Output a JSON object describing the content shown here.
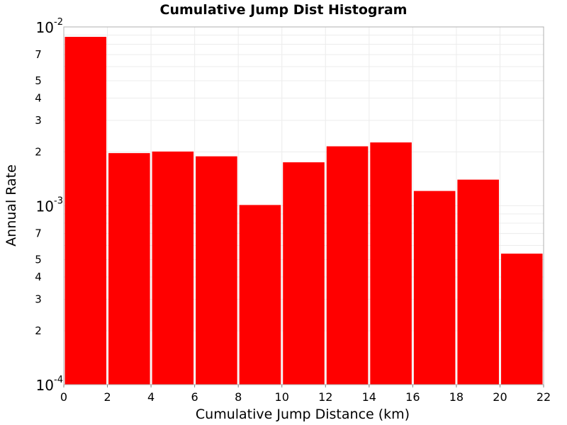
{
  "chart_data": {
    "type": "bar",
    "title": "Cumulative Jump Dist Histogram",
    "xlabel": "Cumulative Jump Distance (km)",
    "ylabel": "Annual Rate",
    "yscale": "log",
    "xlim": [
      0,
      22
    ],
    "ylim": [
      0.0001,
      0.01
    ],
    "grid": true,
    "bar_color": "#ff0000",
    "x_ticks": [
      "0",
      "2",
      "4",
      "6",
      "8",
      "10",
      "12",
      "14",
      "16",
      "18",
      "20",
      "22"
    ],
    "bins": [
      {
        "x0": 0,
        "x1": 2,
        "value": 0.0088
      },
      {
        "x0": 2,
        "x1": 4,
        "value": 0.00197
      },
      {
        "x0": 4,
        "x1": 6,
        "value": 0.00201
      },
      {
        "x0": 6,
        "x1": 8,
        "value": 0.00189
      },
      {
        "x0": 8,
        "x1": 10,
        "value": 0.00101
      },
      {
        "x0": 10,
        "x1": 12,
        "value": 0.00175
      },
      {
        "x0": 12,
        "x1": 14,
        "value": 0.00215
      },
      {
        "x0": 14,
        "x1": 16,
        "value": 0.00226
      },
      {
        "x0": 16,
        "x1": 18,
        "value": 0.00121
      },
      {
        "x0": 18,
        "x1": 20,
        "value": 0.0014
      },
      {
        "x0": 20,
        "x1": 22,
        "value": 0.00054
      }
    ],
    "y_decade_ticks": [
      {
        "value": 0.01,
        "base": "10",
        "exp": "-2"
      },
      {
        "value": 0.001,
        "base": "10",
        "exp": "-3"
      },
      {
        "value": 0.0001,
        "base": "10",
        "exp": "-4"
      }
    ],
    "y_minor_tick_labels": [
      {
        "value": 0.007,
        "label": "7"
      },
      {
        "value": 0.005,
        "label": "5"
      },
      {
        "value": 0.004,
        "label": "4"
      },
      {
        "value": 0.003,
        "label": "3"
      },
      {
        "value": 0.002,
        "label": "2"
      },
      {
        "value": 0.0007,
        "label": "7"
      },
      {
        "value": 0.0005,
        "label": "5"
      },
      {
        "value": 0.0004,
        "label": "4"
      },
      {
        "value": 0.0003,
        "label": "3"
      },
      {
        "value": 0.0002,
        "label": "2"
      }
    ]
  }
}
